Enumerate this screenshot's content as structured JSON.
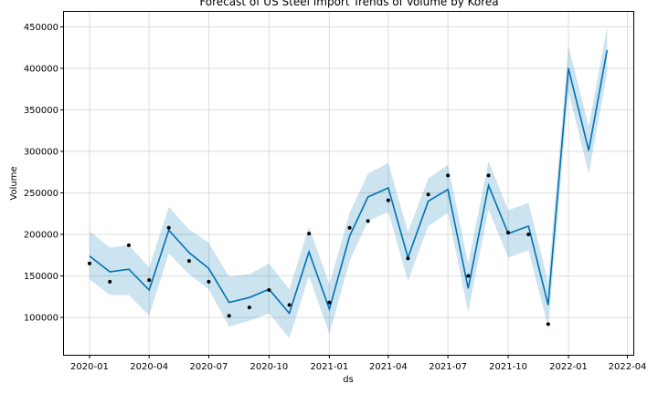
{
  "chart_data": {
    "type": "line",
    "title": "Forecast of US Steel Import Trends of Volume by Korea",
    "xlabel": "ds",
    "ylabel": "Volume",
    "grid": true,
    "xlim": [
      "2019-11-23",
      "2022-04-10"
    ],
    "ylim": [
      55000,
      468000
    ],
    "x_ticks": [
      {
        "date": "2020-01-01",
        "label": "2020-01"
      },
      {
        "date": "2020-04-01",
        "label": "2020-04"
      },
      {
        "date": "2020-07-01",
        "label": "2020-07"
      },
      {
        "date": "2020-10-01",
        "label": "2020-10"
      },
      {
        "date": "2021-01-01",
        "label": "2021-01"
      },
      {
        "date": "2021-04-01",
        "label": "2021-04"
      },
      {
        "date": "2021-07-01",
        "label": "2021-07"
      },
      {
        "date": "2021-10-01",
        "label": "2021-10"
      },
      {
        "date": "2022-01-01",
        "label": "2022-01"
      },
      {
        "date": "2022-04-01",
        "label": "2022-04"
      }
    ],
    "y_ticks": [
      {
        "value": 100000,
        "label": "100000"
      },
      {
        "value": 150000,
        "label": "150000"
      },
      {
        "value": 200000,
        "label": "200000"
      },
      {
        "value": 250000,
        "label": "250000"
      },
      {
        "value": 300000,
        "label": "300000"
      },
      {
        "value": 350000,
        "label": "350000"
      },
      {
        "value": 400000,
        "label": "400000"
      },
      {
        "value": 450000,
        "label": "450000"
      }
    ],
    "colors": {
      "line": "#0072b2",
      "band": "#0072b2",
      "points": "#000000",
      "grid": "#dddddd"
    },
    "forecast": {
      "ds": [
        "2020-01-01",
        "2020-02-01",
        "2020-03-01",
        "2020-04-01",
        "2020-05-01",
        "2020-06-01",
        "2020-07-01",
        "2020-08-01",
        "2020-09-01",
        "2020-10-01",
        "2020-11-01",
        "2020-12-01",
        "2021-01-01",
        "2021-02-01",
        "2021-03-01",
        "2021-04-01",
        "2021-05-01",
        "2021-06-01",
        "2021-07-01",
        "2021-08-01",
        "2021-09-01",
        "2021-10-01",
        "2021-11-01",
        "2021-12-01",
        "2022-01-01",
        "2022-02-01",
        "2022-03-01"
      ],
      "yhat": [
        174000,
        155000,
        158000,
        133000,
        205000,
        178000,
        159000,
        118000,
        124000,
        134000,
        105000,
        179000,
        110000,
        198000,
        245000,
        256000,
        172000,
        240000,
        254000,
        135000,
        259000,
        201000,
        210000,
        115000,
        400000,
        301000,
        422000
      ],
      "yhat_lower": [
        146000,
        127000,
        127000,
        102000,
        177000,
        152000,
        134000,
        89000,
        96000,
        105000,
        75000,
        150000,
        80000,
        168000,
        216000,
        227000,
        144000,
        210000,
        226000,
        107000,
        230000,
        172000,
        181000,
        88000,
        372000,
        273000,
        394000
      ],
      "yhat_upper": [
        204000,
        184000,
        187000,
        160000,
        233000,
        206000,
        190000,
        149000,
        152000,
        165000,
        134000,
        209000,
        140000,
        226000,
        273000,
        286000,
        203000,
        267000,
        284000,
        165000,
        288000,
        229000,
        238000,
        143000,
        427000,
        330000,
        450000
      ]
    },
    "actual": {
      "ds": [
        "2020-01-01",
        "2020-02-01",
        "2020-03-01",
        "2020-04-01",
        "2020-05-01",
        "2020-06-01",
        "2020-07-01",
        "2020-08-01",
        "2020-09-01",
        "2020-10-01",
        "2020-11-01",
        "2020-12-01",
        "2021-01-01",
        "2021-02-01",
        "2021-03-01",
        "2021-04-01",
        "2021-05-01",
        "2021-06-01",
        "2021-07-01",
        "2021-08-01",
        "2021-09-01",
        "2021-10-01",
        "2021-11-01",
        "2021-12-01"
      ],
      "y": [
        165000,
        143000,
        187000,
        145000,
        208000,
        168000,
        143000,
        102000,
        112000,
        133000,
        115000,
        201000,
        118000,
        208000,
        216000,
        241000,
        171000,
        248000,
        271000,
        150000,
        271000,
        202000,
        200000,
        92000
      ]
    }
  }
}
